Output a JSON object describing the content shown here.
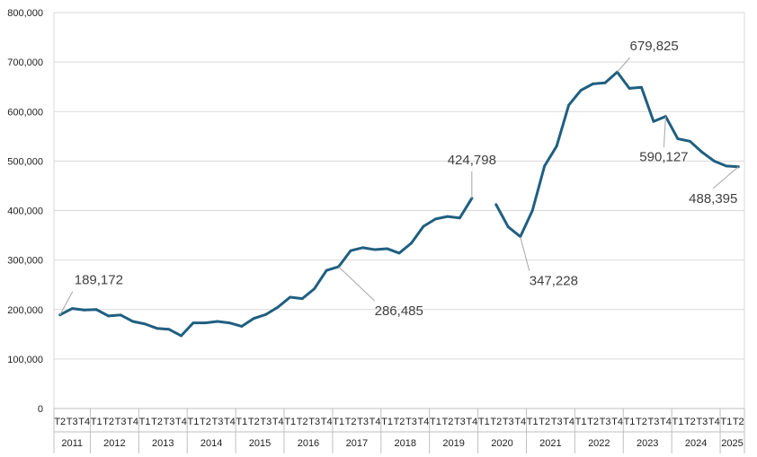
{
  "chart_data": {
    "type": "line",
    "title": "",
    "xlabel": "",
    "ylabel": "",
    "ylim": [
      0,
      800000
    ],
    "y_ticks": [
      "0",
      "100,000",
      "200,000",
      "300,000",
      "400,000",
      "500,000",
      "600,000",
      "700,000",
      "800,000"
    ],
    "grid": "horizontal",
    "legend": "none",
    "line_color": "#1f5f80",
    "quarters": [
      "T2",
      "T3",
      "T4",
      "T1",
      "T2",
      "T3",
      "T4",
      "T1",
      "T2",
      "T3",
      "T4",
      "T1",
      "T2",
      "T3",
      "T4",
      "T1",
      "T2",
      "T3",
      "T4",
      "T1",
      "T2",
      "T3",
      "T4",
      "T1",
      "T2",
      "T3",
      "T4",
      "T1",
      "T2",
      "T3",
      "T4",
      "T1",
      "T2",
      "T3",
      "T4",
      "T1",
      "T2",
      "T3",
      "T4",
      "T1",
      "T2",
      "T3",
      "T4",
      "T1",
      "T2",
      "T3",
      "T4",
      "T1",
      "T2",
      "T3",
      "T4",
      "T1",
      "T2",
      "T3",
      "T4",
      "T1",
      "T2"
    ],
    "years": [
      {
        "label": "2011",
        "count": 3
      },
      {
        "label": "2012",
        "count": 4
      },
      {
        "label": "2013",
        "count": 4
      },
      {
        "label": "2014",
        "count": 4
      },
      {
        "label": "2015",
        "count": 4
      },
      {
        "label": "2016",
        "count": 4
      },
      {
        "label": "2017",
        "count": 4
      },
      {
        "label": "2018",
        "count": 4
      },
      {
        "label": "2019",
        "count": 4
      },
      {
        "label": "2020",
        "count": 4
      },
      {
        "label": "2021",
        "count": 4
      },
      {
        "label": "2022",
        "count": 4
      },
      {
        "label": "2023",
        "count": 4
      },
      {
        "label": "2024",
        "count": 4
      },
      {
        "label": "2025",
        "count": 2
      }
    ],
    "values": [
      189172,
      202000,
      199000,
      200000,
      187000,
      189000,
      176000,
      171000,
      162000,
      160000,
      147000,
      173000,
      173000,
      176000,
      173000,
      166000,
      182000,
      190000,
      205000,
      225000,
      222000,
      242000,
      279000,
      286485,
      319000,
      325000,
      321000,
      323000,
      314000,
      334000,
      368000,
      383000,
      388000,
      385000,
      424798,
      null,
      412000,
      367000,
      347228,
      400000,
      490000,
      530000,
      613000,
      643000,
      656000,
      658000,
      679825,
      647000,
      649000,
      580000,
      590127,
      545000,
      540000,
      518000,
      500000,
      490000,
      488395
    ],
    "annotations": [
      {
        "index": 0,
        "label": "189,172",
        "dx": 14,
        "dy": -32
      },
      {
        "index": 23,
        "label": "286,485",
        "dx": 40,
        "dy": 44
      },
      {
        "index": 34,
        "label": "424,798",
        "dx": 0,
        "dy": -36
      },
      {
        "index": 38,
        "label": "347,228",
        "dx": 10,
        "dy": 44
      },
      {
        "index": 46,
        "label": "679,825",
        "dx": 14,
        "dy": -22
      },
      {
        "index": 50,
        "label": "590,127",
        "dx": -2,
        "dy": 40
      },
      {
        "index": 56,
        "label": "488,395",
        "dx": -28,
        "dy": 30
      }
    ]
  }
}
